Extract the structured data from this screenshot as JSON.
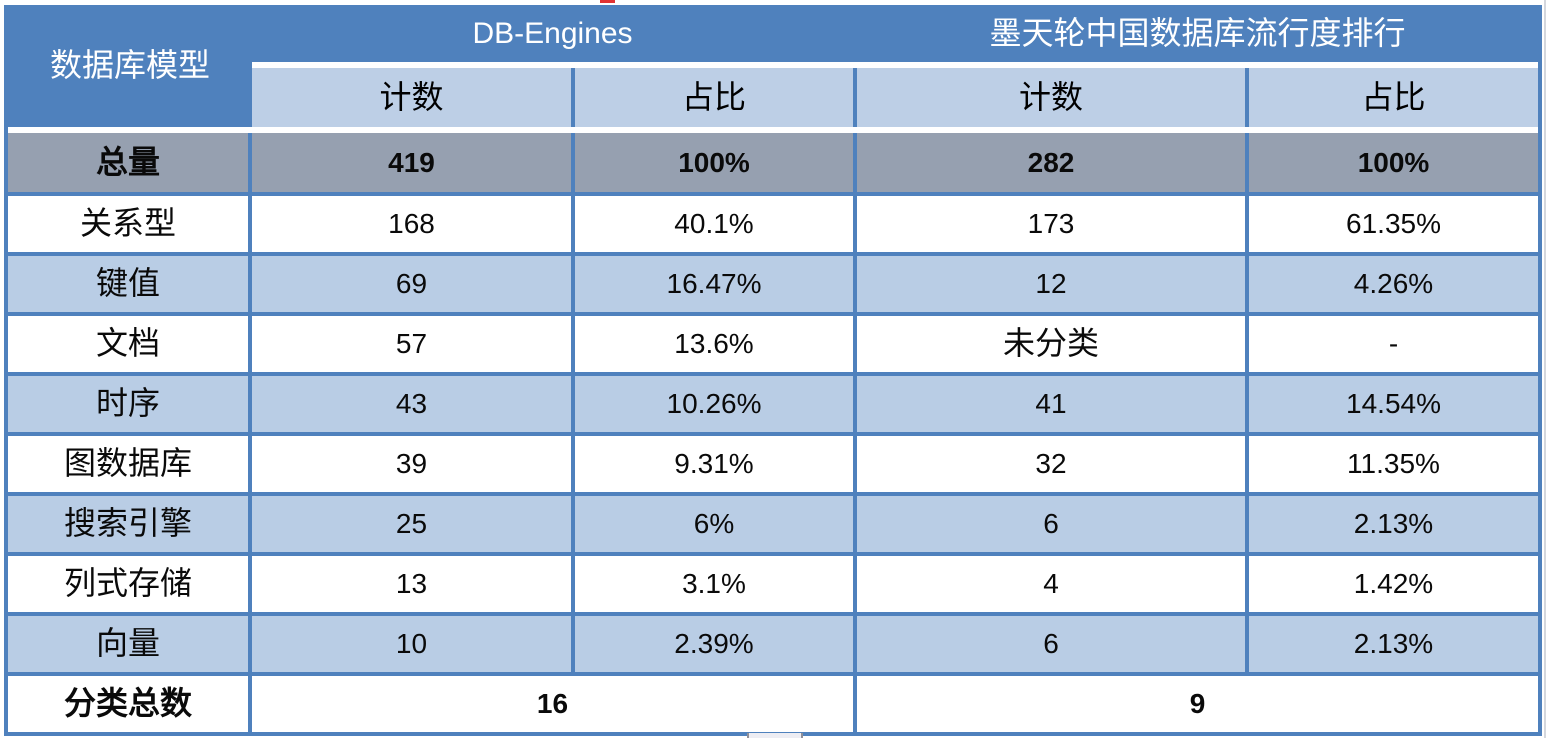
{
  "table": {
    "row_header_label": "数据库模型",
    "groups": [
      {
        "label": "DB-Engines"
      },
      {
        "label": "墨天轮中国数据库流行度排行"
      }
    ],
    "subheaders": [
      "计数",
      "占比",
      "计数",
      "占比"
    ],
    "total_row": {
      "label": "总量",
      "values": [
        "419",
        "100%",
        "282",
        "100%"
      ]
    },
    "rows": [
      {
        "label": "关系型",
        "values": [
          "168",
          "40.1%",
          "173",
          "61.35%"
        ]
      },
      {
        "label": "键值",
        "values": [
          "69",
          "16.47%",
          "12",
          "4.26%"
        ]
      },
      {
        "label": "文档",
        "values": [
          "57",
          "13.6%",
          "未分类",
          "-"
        ]
      },
      {
        "label": "时序",
        "values": [
          "43",
          "10.26%",
          "41",
          "14.54%"
        ]
      },
      {
        "label": "图数据库",
        "values": [
          "39",
          "9.31%",
          "32",
          "11.35%"
        ]
      },
      {
        "label": "搜索引擎",
        "values": [
          "25",
          "6%",
          "6",
          "2.13%"
        ]
      },
      {
        "label": "列式存储",
        "values": [
          "13",
          "3.1%",
          "4",
          "1.42%"
        ]
      },
      {
        "label": "向量",
        "values": [
          "10",
          "2.39%",
          "6",
          "2.13%"
        ]
      }
    ],
    "footer_row": {
      "label": "分类总数",
      "values": [
        "16",
        "9"
      ]
    }
  },
  "colors": {
    "header_blue": "#4F81BD",
    "subheader_blue": "#BDCFE6",
    "stripe_blue": "#B9CDE5",
    "total_row_gray": "#96A0B0",
    "grid_line_blue": "#4F81BD",
    "header_text": "#FFFFFF",
    "body_text": "#000000"
  }
}
